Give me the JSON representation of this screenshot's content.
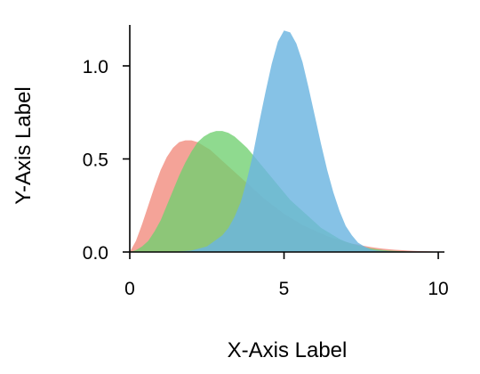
{
  "chart_data": {
    "type": "area",
    "xlabel": "X-Axis Label",
    "ylabel": "Y-Axis Label",
    "xlim": [
      0,
      10.2
    ],
    "ylim": [
      0,
      1.22
    ],
    "xticks": [
      0,
      5,
      10
    ],
    "yticks": [
      0.0,
      0.5,
      1.0
    ],
    "xtick_labels": [
      "0",
      "5",
      "10"
    ],
    "ytick_labels": [
      "0.0",
      "0.5",
      "1.0"
    ],
    "grid": false,
    "legend": "none",
    "series": [
      {
        "color": "#f08070",
        "opacity": 0.72,
        "x": [
          0,
          0.2,
          0.4,
          0.6,
          0.8,
          1.0,
          1.2,
          1.4,
          1.6,
          1.8,
          2.0,
          2.2,
          2.4,
          2.6,
          2.8,
          3.0,
          3.2,
          3.4,
          3.6,
          3.8,
          4.0,
          4.2,
          4.4,
          4.6,
          4.8,
          5.0,
          5.2,
          5.4,
          5.6,
          5.8,
          6.0,
          6.2,
          6.4,
          6.6,
          6.8,
          7.0,
          7.2,
          7.4,
          7.6,
          7.8,
          8.0,
          8.2,
          8.4,
          8.6,
          8.8,
          9.0,
          9.2,
          9.4,
          9.6,
          9.8,
          10.0
        ],
        "values": [
          0.0,
          0.06,
          0.15,
          0.25,
          0.35,
          0.44,
          0.51,
          0.56,
          0.59,
          0.6,
          0.6,
          0.59,
          0.57,
          0.55,
          0.52,
          0.49,
          0.46,
          0.43,
          0.4,
          0.37,
          0.34,
          0.31,
          0.28,
          0.255,
          0.23,
          0.205,
          0.185,
          0.165,
          0.145,
          0.13,
          0.115,
          0.1,
          0.085,
          0.075,
          0.065,
          0.055,
          0.045,
          0.04,
          0.033,
          0.027,
          0.022,
          0.018,
          0.015,
          0.012,
          0.01,
          0.008,
          0.006,
          0.005,
          0.004,
          0.003,
          0.0
        ]
      },
      {
        "color": "#6fcf6f",
        "opacity": 0.78,
        "x": [
          0,
          0.2,
          0.4,
          0.6,
          0.8,
          1.0,
          1.2,
          1.4,
          1.6,
          1.8,
          2.0,
          2.2,
          2.4,
          2.6,
          2.8,
          3.0,
          3.2,
          3.4,
          3.6,
          3.8,
          4.0,
          4.2,
          4.4,
          4.6,
          4.8,
          5.0,
          5.2,
          5.4,
          5.6,
          5.8,
          6.0,
          6.2,
          6.4,
          6.6,
          6.8,
          7.0,
          7.2,
          7.4,
          7.6,
          7.8,
          8.0,
          8.2,
          8.4,
          8.6,
          8.8,
          9.0,
          9.2,
          9.4,
          9.6,
          9.8,
          10.0
        ],
        "values": [
          0.0,
          0.01,
          0.03,
          0.06,
          0.11,
          0.17,
          0.25,
          0.33,
          0.41,
          0.48,
          0.54,
          0.59,
          0.62,
          0.64,
          0.65,
          0.65,
          0.64,
          0.62,
          0.59,
          0.56,
          0.52,
          0.48,
          0.44,
          0.4,
          0.36,
          0.32,
          0.28,
          0.25,
          0.22,
          0.19,
          0.16,
          0.13,
          0.11,
          0.09,
          0.07,
          0.055,
          0.045,
          0.035,
          0.027,
          0.02,
          0.015,
          0.011,
          0.008,
          0.006,
          0.004,
          0.003,
          0.002,
          0.0015,
          0.001,
          0.0,
          0.0
        ]
      },
      {
        "color": "#6bb5e0",
        "opacity": 0.82,
        "x": [
          0,
          0.5,
          1.0,
          1.5,
          2.0,
          2.5,
          3.0,
          3.2,
          3.4,
          3.6,
          3.8,
          4.0,
          4.2,
          4.4,
          4.6,
          4.8,
          5.0,
          5.2,
          5.4,
          5.6,
          5.8,
          6.0,
          6.2,
          6.4,
          6.6,
          6.8,
          7.0,
          7.2,
          7.4,
          7.6,
          7.8,
          8.0,
          8.5,
          9.0,
          9.5,
          10.0
        ],
        "values": [
          0.0,
          0.0,
          0.0,
          0.002,
          0.008,
          0.03,
          0.09,
          0.13,
          0.19,
          0.27,
          0.39,
          0.53,
          0.7,
          0.86,
          1.01,
          1.13,
          1.19,
          1.18,
          1.12,
          1.02,
          0.88,
          0.73,
          0.58,
          0.44,
          0.32,
          0.22,
          0.14,
          0.09,
          0.05,
          0.03,
          0.015,
          0.008,
          0.003,
          0.001,
          0.0,
          0.0
        ]
      }
    ]
  }
}
